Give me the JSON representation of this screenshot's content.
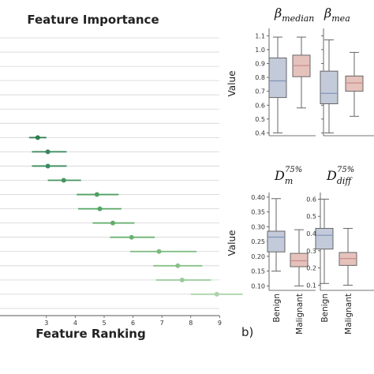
{
  "chart_data": [
    {
      "type": "scatter",
      "title": "Feature Importance",
      "xlabel": "Feature Ranking",
      "x_ticks": [
        "3",
        "4",
        "5",
        "6",
        "7",
        "8",
        "9"
      ],
      "xlim": [
        0.8,
        10
      ],
      "grid": true,
      "rows": 16,
      "points": [
        {
          "row": 8,
          "x": 2.7,
          "lo": 2.4,
          "hi": 3.0,
          "color": "#2e7d4f"
        },
        {
          "row": 9,
          "x": 3.05,
          "lo": 2.5,
          "hi": 3.7,
          "color": "#36875a"
        },
        {
          "row": 10,
          "x": 3.05,
          "lo": 2.5,
          "hi": 3.7,
          "color": "#3a8c5e"
        },
        {
          "row": 11,
          "x": 3.6,
          "lo": 3.05,
          "hi": 4.2,
          "color": "#44955f"
        },
        {
          "row": 12,
          "x": 4.75,
          "lo": 4.05,
          "hi": 5.5,
          "color": "#4fa063"
        },
        {
          "row": 13,
          "x": 4.85,
          "lo": 4.1,
          "hi": 5.6,
          "color": "#55a566"
        },
        {
          "row": 14,
          "x": 5.3,
          "lo": 4.6,
          "hi": 6.05,
          "color": "#60ac6c"
        },
        {
          "row": 15,
          "x": 5.95,
          "lo": 5.2,
          "hi": 6.75,
          "color": "#6bb374"
        },
        {
          "row": 16,
          "x": 6.9,
          "lo": 5.9,
          "hi": 8.2,
          "color": "#7aba7e"
        },
        {
          "row": 17,
          "x": 7.55,
          "lo": 6.7,
          "hi": 8.4,
          "color": "#88c28a"
        },
        {
          "row": 18,
          "x": 7.7,
          "lo": 6.8,
          "hi": 8.7,
          "color": "#99ca98"
        },
        {
          "row": 19,
          "x": 8.9,
          "lo": 8.0,
          "hi": 9.8,
          "color": "#abd3a8"
        }
      ]
    },
    {
      "type": "box",
      "title_base": "β",
      "title_sub": "median",
      "ylabel": "Value",
      "y_ticks": [
        "0.4",
        "0.5",
        "0.6",
        "0.7",
        "0.8",
        "0.9",
        "1.0",
        "1.1"
      ],
      "ylim": [
        0.38,
        1.13
      ],
      "categories": [
        "Benign",
        "Malignant"
      ],
      "boxes": [
        {
          "q1": 0.655,
          "median": 0.775,
          "q3": 0.94,
          "min": 0.4,
          "max": 1.09
        },
        {
          "q1": 0.805,
          "median": 0.885,
          "q3": 0.96,
          "min": 0.58,
          "max": 1.09
        }
      ]
    },
    {
      "type": "box",
      "title_base": "β",
      "title_sub": "mea",
      "y_ticks": [],
      "ylim": [
        0.38,
        1.13
      ],
      "categories": [
        "Benign",
        "Malignant"
      ],
      "boxes": [
        {
          "q1": 0.61,
          "median": 0.685,
          "q3": 0.845,
          "min": 0.4,
          "max": 1.07
        },
        {
          "q1": 0.7,
          "median": 0.76,
          "q3": 0.81,
          "min": 0.52,
          "max": 0.98
        }
      ]
    },
    {
      "type": "box",
      "title_base": "D",
      "title_sub": "m",
      "title_sup": "75%",
      "ylabel": "Value",
      "y_ticks": [
        "0.10",
        "0.15",
        "0.20",
        "0.25",
        "0.30",
        "0.35",
        "0.40"
      ],
      "ylim": [
        0.085,
        0.405
      ],
      "categories": [
        "Benign",
        "Malignant"
      ],
      "boxes": [
        {
          "q1": 0.215,
          "median": 0.265,
          "q3": 0.285,
          "min": 0.15,
          "max": 0.395
        },
        {
          "q1": 0.165,
          "median": 0.185,
          "q3": 0.21,
          "min": 0.1,
          "max": 0.29
        }
      ]
    },
    {
      "type": "box",
      "title_base": "D",
      "title_sub": "diff",
      "title_sup": "75%",
      "y_ticks": [
        "0.1",
        "0.2",
        "0.3",
        "0.4",
        "0.5",
        "0.6"
      ],
      "ylim": [
        0.07,
        0.62
      ],
      "categories": [
        "Benign",
        "Malignant"
      ],
      "boxes": [
        {
          "q1": 0.31,
          "median": 0.39,
          "q3": 0.43,
          "min": 0.11,
          "max": 0.6
        },
        {
          "q1": 0.215,
          "median": 0.255,
          "q3": 0.29,
          "min": 0.1,
          "max": 0.43
        }
      ]
    }
  ],
  "panel_label": "b)",
  "colors": {
    "benign": "#c3cad9",
    "malignant": "#e6c2bd",
    "edge": "#666666"
  }
}
